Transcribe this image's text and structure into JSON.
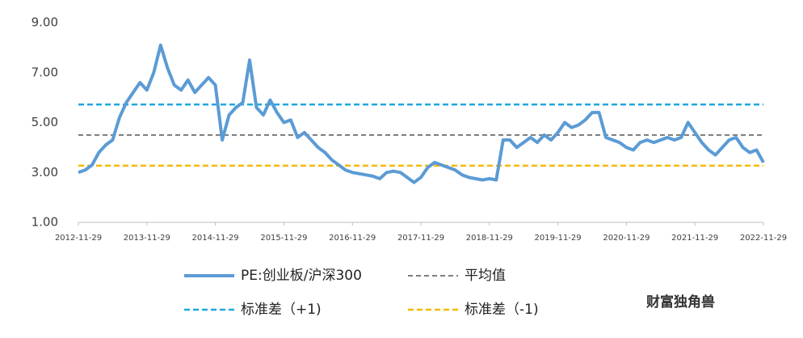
{
  "chart_data": {
    "type": "line",
    "x": [
      2012.9,
      2013.0,
      2013.1,
      2013.2,
      2013.3,
      2013.4,
      2013.5,
      2013.6,
      2013.7,
      2013.8,
      2013.9,
      2014.0,
      2014.1,
      2014.2,
      2014.3,
      2014.4,
      2014.5,
      2014.6,
      2014.7,
      2014.8,
      2014.9,
      2015.0,
      2015.1,
      2015.2,
      2015.3,
      2015.4,
      2015.5,
      2015.6,
      2015.7,
      2015.8,
      2015.9,
      2016.0,
      2016.1,
      2016.2,
      2016.3,
      2016.4,
      2016.5,
      2016.6,
      2016.7,
      2016.8,
      2016.9,
      2017.0,
      2017.1,
      2017.2,
      2017.3,
      2017.4,
      2017.5,
      2017.6,
      2017.7,
      2017.8,
      2017.9,
      2018.0,
      2018.1,
      2018.2,
      2018.3,
      2018.4,
      2018.5,
      2018.6,
      2018.7,
      2018.8,
      2018.9,
      2019.0,
      2019.1,
      2019.2,
      2019.3,
      2019.4,
      2019.5,
      2019.6,
      2019.7,
      2019.8,
      2019.9,
      2020.0,
      2020.1,
      2020.2,
      2020.3,
      2020.4,
      2020.5,
      2020.6,
      2020.7,
      2020.8,
      2020.9,
      2021.0,
      2021.1,
      2021.2,
      2021.3,
      2021.4,
      2021.5,
      2021.6,
      2021.7,
      2021.8,
      2021.9,
      2022.0,
      2022.1,
      2022.2,
      2022.3,
      2022.4,
      2022.5,
      2022.6,
      2022.7,
      2022.8,
      2022.9
    ],
    "series": [
      {
        "name": "PE:创业板/沪深300",
        "color": "#5b9bd5",
        "values": [
          3.0,
          3.1,
          3.3,
          3.8,
          4.1,
          4.3,
          5.2,
          5.8,
          6.2,
          6.6,
          6.3,
          7.0,
          8.1,
          7.2,
          6.5,
          6.3,
          6.7,
          6.2,
          6.5,
          6.8,
          6.5,
          4.3,
          5.3,
          5.6,
          5.8,
          7.5,
          5.6,
          5.3,
          5.9,
          5.4,
          5.0,
          5.1,
          4.4,
          4.6,
          4.3,
          4.0,
          3.8,
          3.5,
          3.3,
          3.1,
          3.0,
          2.95,
          2.9,
          2.85,
          2.75,
          3.0,
          3.05,
          3.0,
          2.8,
          2.6,
          2.8,
          3.2,
          3.4,
          3.3,
          3.2,
          3.1,
          2.9,
          2.8,
          2.75,
          2.7,
          2.75,
          2.7,
          4.3,
          4.3,
          4.0,
          4.2,
          4.4,
          4.2,
          4.5,
          4.3,
          4.6,
          5.0,
          4.8,
          4.9,
          5.1,
          5.4,
          5.4,
          4.4,
          4.3,
          4.2,
          4.0,
          3.9,
          4.2,
          4.3,
          4.2,
          4.3,
          4.4,
          4.3,
          4.4,
          5.0,
          4.6,
          4.2,
          3.9,
          3.7,
          4.0,
          4.3,
          4.4,
          4.0,
          3.8,
          3.9,
          3.4
        ]
      }
    ],
    "reference_lines": [
      {
        "name": "平均值",
        "color": "#7f7f7f",
        "value": 4.5
      },
      {
        "name": "标准差（+1)",
        "color": "#1fa8e0",
        "value": 5.72
      },
      {
        "name": "标准差（-1)",
        "color": "#f5b800",
        "value": 3.27
      }
    ],
    "xlim": [
      2012.9,
      2022.9
    ],
    "xticks": [
      {
        "value": 2012.9,
        "label": "2012-11-29"
      },
      {
        "value": 2013.9,
        "label": "2013-11-29"
      },
      {
        "value": 2014.9,
        "label": "2014-11-29"
      },
      {
        "value": 2015.9,
        "label": "2015-11-29"
      },
      {
        "value": 2016.9,
        "label": "2016-11-29"
      },
      {
        "value": 2017.9,
        "label": "2017-11-29"
      },
      {
        "value": 2018.9,
        "label": "2018-11-29"
      },
      {
        "value": 2019.9,
        "label": "2019-11-29"
      },
      {
        "value": 2020.9,
        "label": "2020-11-29"
      },
      {
        "value": 2021.9,
        "label": "2021-11-29"
      },
      {
        "value": 2022.9,
        "label": "2022-11-29"
      }
    ],
    "ylim": [
      1,
      9
    ],
    "yticks": [
      {
        "value": 1,
        "label": "1.00"
      },
      {
        "value": 3,
        "label": "3.00"
      },
      {
        "value": 5,
        "label": "5.00"
      },
      {
        "value": 7,
        "label": "7.00"
      },
      {
        "value": 9,
        "label": "9.00"
      }
    ],
    "grid": false,
    "watermark": "财富独角兽"
  }
}
